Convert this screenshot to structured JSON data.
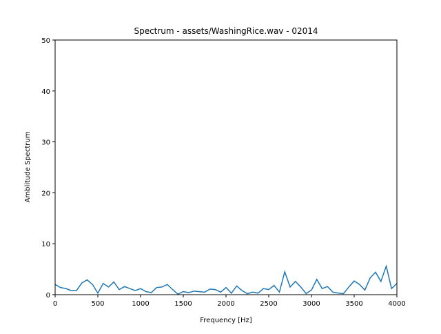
{
  "chart_data": {
    "type": "line",
    "title": "Spectrum - assets/WashingRice.wav - 02014",
    "x_label": "Frequency [Hz]",
    "y_label": "Amblitude Spectrum",
    "x": [
      0,
      62.5,
      125,
      187.5,
      250,
      312.5,
      375,
      437.5,
      500,
      562.5,
      625,
      687.5,
      750,
      812.5,
      875,
      937.5,
      1000,
      1062.5,
      1125,
      1187.5,
      1250,
      1312.5,
      1375,
      1437.5,
      1500,
      1562.5,
      1625,
      1687.5,
      1750,
      1812.5,
      1875,
      1937.5,
      2000,
      2062.5,
      2125,
      2187.5,
      2250,
      2312.5,
      2375,
      2437.5,
      2500,
      2562.5,
      2625,
      2687.5,
      2750,
      2812.5,
      2875,
      2937.5,
      3000,
      3062.5,
      3125,
      3187.5,
      3250,
      3312.5,
      3375,
      3437.5,
      3500,
      3562.5,
      3625,
      3687.5,
      3750,
      3812.5,
      3875,
      3937.5,
      4000
    ],
    "series": [
      {
        "name": "spectrum",
        "color": "#1f77b4",
        "values": [
          2.0,
          1.4,
          1.2,
          0.8,
          0.8,
          2.3,
          2.9,
          2.0,
          0.3,
          2.2,
          1.5,
          2.5,
          1.0,
          1.6,
          1.2,
          0.8,
          1.2,
          0.6,
          0.4,
          1.4,
          1.5,
          2.0,
          1.0,
          0.1,
          0.6,
          0.4,
          0.7,
          0.6,
          0.5,
          1.1,
          1.0,
          0.5,
          1.4,
          0.3,
          1.7,
          0.8,
          0.2,
          0.5,
          0.3,
          1.2,
          1.0,
          1.8,
          0.5,
          4.5,
          1.5,
          2.6,
          1.5,
          0.2,
          0.9,
          3.0,
          1.2,
          1.6,
          0.5,
          0.3,
          0.2,
          1.5,
          2.7,
          2.0,
          0.9,
          3.3,
          4.4,
          2.6,
          5.6,
          1.2,
          2.2
        ]
      }
    ],
    "xlim": [
      0,
      4000
    ],
    "xticks": [
      0,
      500,
      1000,
      1500,
      2000,
      2500,
      3000,
      3500,
      4000
    ],
    "ylim": [
      0,
      50
    ],
    "yticks": [
      0,
      10,
      20,
      30,
      40,
      50
    ]
  }
}
